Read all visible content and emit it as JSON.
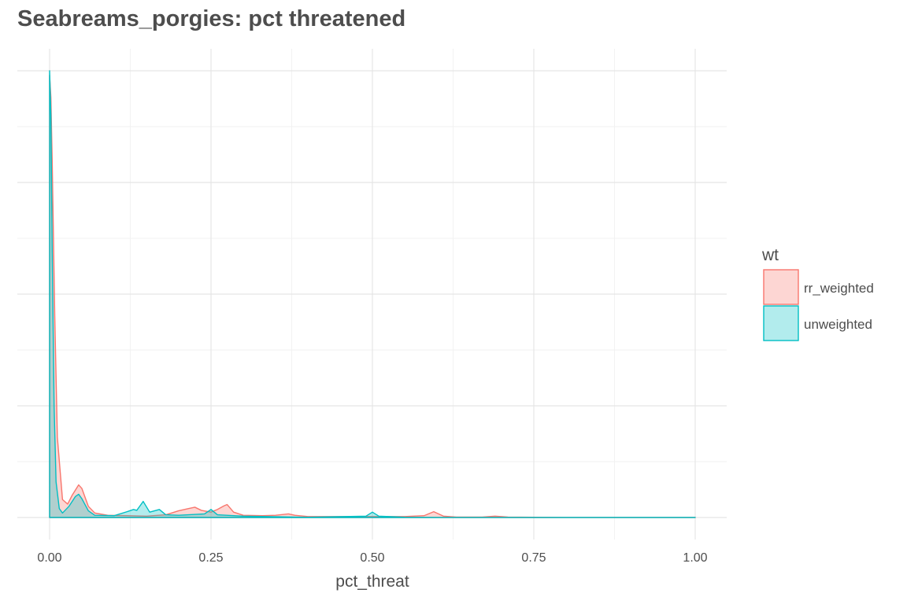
{
  "chart_data": {
    "type": "area",
    "title": "Seabreams_porgies: pct threatened",
    "xlabel": "pct_threat",
    "ylabel": "",
    "xlim": [
      -0.02,
      1.0
    ],
    "ylim": [
      0,
      100
    ],
    "x_ticks": [
      0.0,
      0.25,
      0.5,
      0.75,
      1.0
    ],
    "x_tick_labels": [
      "0.00",
      "0.25",
      "0.50",
      "0.75",
      "1.00"
    ],
    "y_gridlines": [
      0,
      25,
      50,
      75,
      100
    ],
    "grid": true,
    "legend": {
      "title": "wt",
      "position": "right",
      "entries": [
        "rr_weighted",
        "unweighted"
      ]
    },
    "colors": {
      "rr_weighted": "#F8766D",
      "unweighted": "#00BFC4"
    },
    "series": [
      {
        "name": "rr_weighted",
        "x": [
          0.0,
          0.002,
          0.004,
          0.008,
          0.012,
          0.02,
          0.028,
          0.035,
          0.045,
          0.05,
          0.06,
          0.07,
          0.09,
          0.12,
          0.15,
          0.18,
          0.2,
          0.215,
          0.225,
          0.235,
          0.25,
          0.26,
          0.27,
          0.275,
          0.285,
          0.3,
          0.33,
          0.35,
          0.37,
          0.38,
          0.4,
          0.45,
          0.5,
          0.55,
          0.58,
          0.595,
          0.61,
          0.63,
          0.67,
          0.69,
          0.71,
          0.75,
          0.8,
          0.9,
          1.0
        ],
        "values": [
          99,
          94,
          80,
          45,
          18,
          4,
          3,
          5,
          7.3,
          6.5,
          2.5,
          1,
          0.5,
          0.4,
          0.3,
          0.6,
          1.5,
          2,
          2.3,
          1.6,
          1.2,
          1.8,
          2.6,
          2.9,
          1.2,
          0.5,
          0.4,
          0.5,
          0.8,
          0.5,
          0.2,
          0.2,
          0.2,
          0.2,
          0.4,
          1.3,
          0.3,
          0.1,
          0.1,
          0.3,
          0.1,
          0.05,
          0.02,
          0.01,
          0.0
        ]
      },
      {
        "name": "unweighted",
        "x": [
          0.0,
          0.002,
          0.004,
          0.007,
          0.01,
          0.015,
          0.02,
          0.03,
          0.04,
          0.045,
          0.05,
          0.06,
          0.07,
          0.1,
          0.12,
          0.13,
          0.135,
          0.14,
          0.145,
          0.155,
          0.165,
          0.17,
          0.18,
          0.2,
          0.24,
          0.25,
          0.26,
          0.3,
          0.4,
          0.49,
          0.5,
          0.51,
          0.55,
          0.6,
          0.7,
          0.8,
          0.9,
          1.0
        ],
        "values": [
          100,
          90,
          60,
          25,
          8,
          2,
          1,
          2.5,
          4.7,
          5.2,
          4.2,
          1.5,
          0.5,
          0.4,
          1.3,
          1.8,
          1.6,
          2.6,
          3.6,
          1.2,
          1.6,
          1.8,
          0.6,
          0.5,
          0.8,
          1.8,
          0.6,
          0.3,
          0.05,
          0.3,
          1.2,
          0.3,
          0.05,
          0.02,
          0.01,
          0.01,
          0.01,
          0.0
        ]
      }
    ]
  }
}
